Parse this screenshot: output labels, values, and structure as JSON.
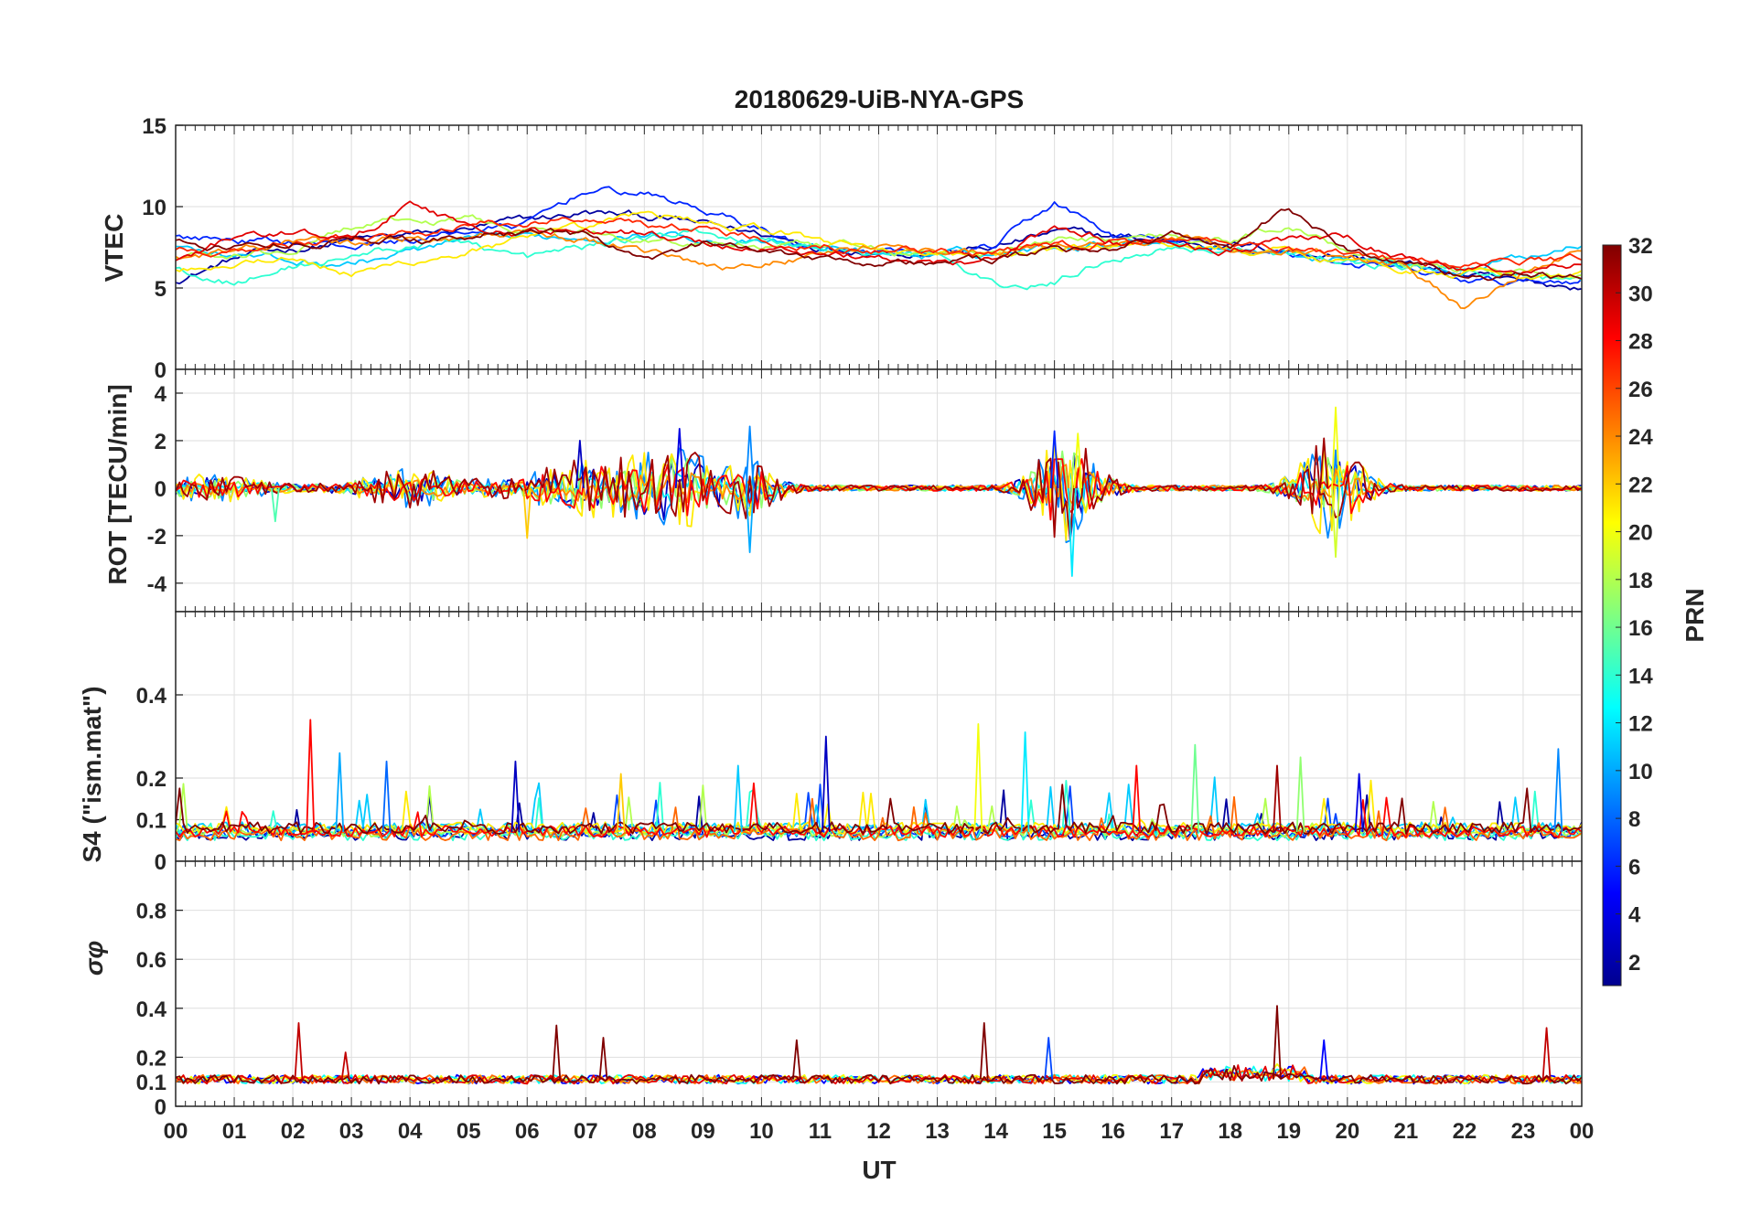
{
  "chart_data": {
    "type": "line",
    "title": "20180629-UiB-NYA-GPS",
    "xlabel": "UT",
    "x_ticks": [
      "00",
      "01",
      "02",
      "03",
      "04",
      "05",
      "06",
      "07",
      "08",
      "09",
      "10",
      "11",
      "12",
      "13",
      "14",
      "15",
      "16",
      "17",
      "18",
      "19",
      "20",
      "21",
      "22",
      "23",
      "00"
    ],
    "xlim": [
      0,
      24
    ],
    "colorbar": {
      "label": "PRN",
      "range": [
        1,
        32
      ],
      "ticks": [
        "2",
        "4",
        "6",
        "8",
        "10",
        "12",
        "14",
        "16",
        "18",
        "20",
        "22",
        "24",
        "26",
        "28",
        "30",
        "32"
      ],
      "colormap": "jet",
      "colors": [
        "#00008f",
        "#0000ff",
        "#0080ff",
        "#00ffff",
        "#80ff80",
        "#ffff00",
        "#ff8000",
        "#ff0000",
        "#800000"
      ]
    },
    "panels": [
      {
        "id": "vtec",
        "ylabel": "VTEC",
        "ylim": [
          0,
          15
        ],
        "y_ticks": [
          "0",
          "5",
          "10",
          "15"
        ],
        "baseline": 7.5,
        "noise": 0.35,
        "events": [
          {
            "t": 7.4,
            "amp": 2.2,
            "w": 2.5
          },
          {
            "t": 15.0,
            "amp": 1.6,
            "w": 0.6
          },
          {
            "t": 19.7,
            "amp": 1.8,
            "w": 0.6
          },
          {
            "t": 22.0,
            "amp": -1.5,
            "w": 1.5
          }
        ],
        "series": [
          {
            "prn": 2,
            "values": [
              5.5,
              6.8,
              7.4,
              7.9,
              8.2,
              8.6,
              9.1,
              9.6,
              9.4,
              8.9,
              8.3,
              7.6,
              7.4,
              7.2,
              7.5,
              8.4,
              8.1,
              7.9,
              7.7,
              7.3,
              7.0,
              6.4,
              5.8,
              5.2,
              5.1
            ]
          },
          {
            "prn": 6,
            "values": [
              8.1,
              8.0,
              7.8,
              7.6,
              7.9,
              8.5,
              8.9,
              11.0,
              10.8,
              9.8,
              8.6,
              7.2,
              7.0,
              6.9,
              7.5,
              10.2,
              8.2,
              7.8,
              7.5,
              7.1,
              6.6,
              6.0,
              5.4,
              5.3,
              5.6
            ]
          },
          {
            "prn": 11,
            "values": [
              7.6,
              7.2,
              6.6,
              6.5,
              7.2,
              7.8,
              8.0,
              8.2,
              8.4,
              8.1,
              7.7,
              7.4,
              7.2,
              7.0,
              7.1,
              7.6,
              7.9,
              8.0,
              7.5,
              7.2,
              6.9,
              6.5,
              6.1,
              6.9,
              7.8
            ]
          },
          {
            "prn": 14,
            "values": [
              6.4,
              5.4,
              6.3,
              7.0,
              7.6,
              7.9,
              6.8,
              7.5,
              8.1,
              8.4,
              7.9,
              7.5,
              7.1,
              7.0,
              5.0,
              5.3,
              7.0,
              7.6,
              7.4,
              7.0,
              6.7,
              6.4,
              6.0,
              5.7,
              5.4
            ]
          },
          {
            "prn": 18,
            "values": [
              7.0,
              6.9,
              7.3,
              8.8,
              9.0,
              9.1,
              8.7,
              8.3,
              8.0,
              7.8,
              7.6,
              7.4,
              7.3,
              7.1,
              7.2,
              7.8,
              8.1,
              8.3,
              8.0,
              8.9,
              7.4,
              6.8,
              6.3,
              6.0,
              5.8
            ]
          },
          {
            "prn": 21,
            "values": [
              6.2,
              6.7,
              7.0,
              5.8,
              6.6,
              7.3,
              7.9,
              8.5,
              9.5,
              9.2,
              8.6,
              7.9,
              7.5,
              7.1,
              6.9,
              7.3,
              7.6,
              7.7,
              7.4,
              7.2,
              6.8,
              6.3,
              6.0,
              5.8,
              5.7
            ]
          },
          {
            "prn": 24,
            "values": [
              6.9,
              7.3,
              7.8,
              7.7,
              8.1,
              8.3,
              8.2,
              7.9,
              7.4,
              6.3,
              6.5,
              7.2,
              7.5,
              7.3,
              7.1,
              7.4,
              7.6,
              7.9,
              7.5,
              7.3,
              7.0,
              6.4,
              3.8,
              6.2,
              7.2
            ]
          },
          {
            "prn": 27,
            "values": [
              7.4,
              7.5,
              7.7,
              8.0,
              8.4,
              8.9,
              9.1,
              9.3,
              9.0,
              8.6,
              8.1,
              7.8,
              7.5,
              7.2,
              7.0,
              7.6,
              7.8,
              8.0,
              7.8,
              7.5,
              7.2,
              6.7,
              6.3,
              6.6,
              6.9
            ]
          },
          {
            "prn": 29,
            "values": [
              6.6,
              8.1,
              8.5,
              7.9,
              10.3,
              8.7,
              8.4,
              8.6,
              8.3,
              7.8,
              7.5,
              7.2,
              6.9,
              6.7,
              6.8,
              8.6,
              7.9,
              7.7,
              7.4,
              7.9,
              8.0,
              6.8,
              6.2,
              6.0,
              6.5
            ]
          },
          {
            "prn": 32,
            "values": [
              7.8,
              7.6,
              7.9,
              8.1,
              8.0,
              8.2,
              8.5,
              8.3,
              6.4,
              7.6,
              7.4,
              7.0,
              6.7,
              6.5,
              6.7,
              7.3,
              7.5,
              8.2,
              7.6,
              9.9,
              7.3,
              6.6,
              5.9,
              5.8,
              5.6
            ]
          }
        ]
      },
      {
        "id": "rot",
        "ylabel": "ROT [TECU/min]",
        "ylim": [
          -5.2,
          5
        ],
        "y_ticks": [
          "-4",
          "-2",
          "0",
          "2",
          "4"
        ],
        "baseline": 0,
        "noise": 0.12,
        "events": [
          {
            "t": 0.6,
            "amp": 0.5,
            "w": 1.0
          },
          {
            "t": 4.0,
            "amp": 0.7,
            "w": 1.0
          },
          {
            "t": 7.3,
            "amp": 1.2,
            "w": 1.4
          },
          {
            "t": 8.6,
            "amp": 1.3,
            "w": 0.6
          },
          {
            "t": 9.8,
            "amp": 1.2,
            "w": 0.5
          },
          {
            "t": 15.2,
            "amp": 2.2,
            "w": 0.6
          },
          {
            "t": 19.7,
            "amp": 2.0,
            "w": 0.6
          }
        ],
        "series": [
          {
            "prn": 3,
            "values": []
          },
          {
            "prn": 9,
            "values": []
          },
          {
            "prn": 12,
            "values": []
          },
          {
            "prn": 17,
            "values": []
          },
          {
            "prn": 21,
            "values": []
          },
          {
            "prn": 24,
            "values": []
          },
          {
            "prn": 28,
            "values": []
          },
          {
            "prn": 31,
            "values": []
          }
        ],
        "spikes": [
          {
            "t": 6.0,
            "v": -2.1,
            "prn": 22
          },
          {
            "t": 6.9,
            "v": 2.0,
            "prn": 3
          },
          {
            "t": 8.6,
            "v": 2.5,
            "prn": 4
          },
          {
            "t": 9.8,
            "v": 2.6,
            "prn": 9
          },
          {
            "t": 9.8,
            "v": -2.7,
            "prn": 10
          },
          {
            "t": 15.3,
            "v": -3.7,
            "prn": 12
          },
          {
            "t": 15.4,
            "v": 2.3,
            "prn": 20
          },
          {
            "t": 15.0,
            "v": 2.4,
            "prn": 6
          },
          {
            "t": 19.8,
            "v": 3.4,
            "prn": 20
          },
          {
            "t": 19.8,
            "v": -2.9,
            "prn": 19
          },
          {
            "t": 19.6,
            "v": 2.1,
            "prn": 31
          },
          {
            "t": 1.7,
            "v": -1.4,
            "prn": 15
          }
        ]
      },
      {
        "id": "s4",
        "ylabel": "S4 (\"ism.mat\")",
        "ylim": [
          0,
          0.6
        ],
        "y_ticks": [
          "0",
          "0.1",
          "0.2",
          "0.4"
        ],
        "baseline": 0.07,
        "noise": 0.035,
        "events": [],
        "series": [
          {
            "prn": 2,
            "values": []
          },
          {
            "prn": 7,
            "values": []
          },
          {
            "prn": 11,
            "values": []
          },
          {
            "prn": 14,
            "values": []
          },
          {
            "prn": 18,
            "values": []
          },
          {
            "prn": 21,
            "values": []
          },
          {
            "prn": 25,
            "values": []
          },
          {
            "prn": 28,
            "values": []
          },
          {
            "prn": 32,
            "values": []
          }
        ],
        "spikes": [
          {
            "t": 2.3,
            "v": 0.34,
            "prn": 28
          },
          {
            "t": 2.8,
            "v": 0.26,
            "prn": 10
          },
          {
            "t": 3.6,
            "v": 0.24,
            "prn": 8
          },
          {
            "t": 5.8,
            "v": 0.24,
            "prn": 3
          },
          {
            "t": 7.6,
            "v": 0.21,
            "prn": 22
          },
          {
            "t": 9.6,
            "v": 0.23,
            "prn": 11
          },
          {
            "t": 11.1,
            "v": 0.3,
            "prn": 3
          },
          {
            "t": 13.7,
            "v": 0.33,
            "prn": 20
          },
          {
            "t": 14.5,
            "v": 0.31,
            "prn": 12
          },
          {
            "t": 16.4,
            "v": 0.23,
            "prn": 28
          },
          {
            "t": 17.4,
            "v": 0.28,
            "prn": 16
          },
          {
            "t": 18.8,
            "v": 0.23,
            "prn": 31
          },
          {
            "t": 19.2,
            "v": 0.25,
            "prn": 17
          },
          {
            "t": 20.2,
            "v": 0.21,
            "prn": 4
          },
          {
            "t": 23.6,
            "v": 0.27,
            "prn": 9
          }
        ]
      },
      {
        "id": "sigma",
        "ylabel": "σφ",
        "ylim": [
          0,
          1.0
        ],
        "y_ticks": [
          "0",
          "0.1",
          "0.2",
          "0.4",
          "0.6",
          "0.8"
        ],
        "baseline": 0.11,
        "noise": 0.018,
        "events": [],
        "series": [
          {
            "prn": 5,
            "values": []
          },
          {
            "prn": 13,
            "values": []
          },
          {
            "prn": 20,
            "values": []
          },
          {
            "prn": 25,
            "values": []
          },
          {
            "prn": 29,
            "values": []
          },
          {
            "prn": 32,
            "values": []
          }
        ],
        "spikes": [
          {
            "t": 2.1,
            "v": 0.34,
            "prn": 30
          },
          {
            "t": 2.9,
            "v": 0.22,
            "prn": 30
          },
          {
            "t": 6.5,
            "v": 0.33,
            "prn": 32
          },
          {
            "t": 7.3,
            "v": 0.28,
            "prn": 32
          },
          {
            "t": 10.6,
            "v": 0.27,
            "prn": 32
          },
          {
            "t": 13.8,
            "v": 0.34,
            "prn": 32
          },
          {
            "t": 14.9,
            "v": 0.28,
            "prn": 7
          },
          {
            "t": 18.8,
            "v": 0.41,
            "prn": 32
          },
          {
            "t": 19.6,
            "v": 0.27,
            "prn": 5
          },
          {
            "t": 23.4,
            "v": 0.32,
            "prn": 30
          }
        ]
      }
    ]
  }
}
